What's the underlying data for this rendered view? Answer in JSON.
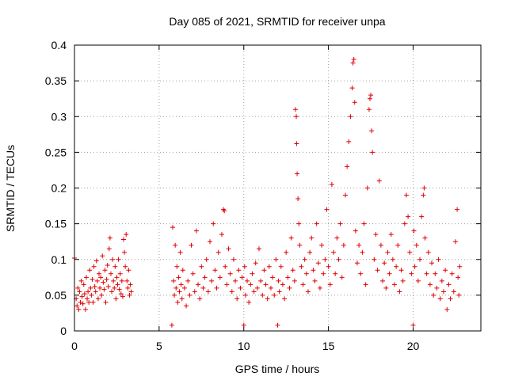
{
  "chart_data": {
    "type": "scatter",
    "title": "Day 085 of 2021, SRMTID for receiver unpa",
    "xlabel": "GPS time / hours",
    "ylabel": "SRMTID / TECUs",
    "xlim": [
      0,
      24
    ],
    "ylim": [
      0,
      0.4
    ],
    "xticks": [
      0,
      5,
      10,
      15,
      20
    ],
    "xtick_labels": [
      "0",
      "5",
      "10",
      "15",
      "20"
    ],
    "yticks": [
      0,
      0.05,
      0.1,
      0.15,
      0.2,
      0.25,
      0.3,
      0.35,
      0.4
    ],
    "ytick_labels": [
      "0",
      "0.05",
      "0.1",
      "0.15",
      "0.2",
      "0.25",
      "0.3",
      "0.35",
      "0.4"
    ],
    "grid": true,
    "marker": "+",
    "color": "#e00000",
    "series": [
      {
        "name": "SRMTID",
        "points": [
          [
            0.0,
            0.102
          ],
          [
            0.1,
            0.045
          ],
          [
            0.15,
            0.035
          ],
          [
            0.2,
            0.06
          ],
          [
            0.25,
            0.03
          ],
          [
            0.3,
            0.055
          ],
          [
            0.35,
            0.04
          ],
          [
            0.4,
            0.07
          ],
          [
            0.45,
            0.048
          ],
          [
            0.5,
            0.038
          ],
          [
            0.55,
            0.065
          ],
          [
            0.6,
            0.052
          ],
          [
            0.65,
            0.03
          ],
          [
            0.7,
            0.075
          ],
          [
            0.75,
            0.045
          ],
          [
            0.8,
            0.055
          ],
          [
            0.85,
            0.04
          ],
          [
            0.9,
            0.085
          ],
          [
            0.95,
            0.06
          ],
          [
            1.0,
            0.05
          ],
          [
            1.05,
            0.072
          ],
          [
            1.1,
            0.04
          ],
          [
            1.15,
            0.09
          ],
          [
            1.2,
            0.062
          ],
          [
            1.25,
            0.055
          ],
          [
            1.3,
            0.098
          ],
          [
            1.35,
            0.07
          ],
          [
            1.4,
            0.045
          ],
          [
            1.45,
            0.08
          ],
          [
            1.5,
            0.06
          ],
          [
            1.55,
            0.075
          ],
          [
            1.6,
            0.05
          ],
          [
            1.65,
            0.105
          ],
          [
            1.7,
            0.068
          ],
          [
            1.75,
            0.058
          ],
          [
            1.8,
            0.085
          ],
          [
            1.85,
            0.04
          ],
          [
            1.9,
            0.072
          ],
          [
            1.95,
            0.092
          ],
          [
            2.0,
            0.062
          ],
          [
            2.05,
            0.115
          ],
          [
            2.1,
            0.13
          ],
          [
            2.15,
            0.08
          ],
          [
            2.2,
            0.055
          ],
          [
            2.25,
            0.1
          ],
          [
            2.3,
            0.07
          ],
          [
            2.35,
            0.06
          ],
          [
            2.4,
            0.09
          ],
          [
            2.45,
            0.045
          ],
          [
            2.5,
            0.075
          ],
          [
            2.55,
            0.065
          ],
          [
            2.6,
            0.1
          ],
          [
            2.65,
            0.058
          ],
          [
            2.7,
            0.08
          ],
          [
            2.75,
            0.052
          ],
          [
            2.8,
            0.07
          ],
          [
            2.85,
            0.048
          ],
          [
            2.9,
            0.128
          ],
          [
            2.95,
            0.11
          ],
          [
            3.0,
            0.09
          ],
          [
            3.05,
            0.135
          ],
          [
            3.1,
            0.07
          ],
          [
            3.15,
            0.06
          ],
          [
            3.2,
            0.085
          ],
          [
            3.25,
            0.05
          ],
          [
            3.3,
            0.065
          ],
          [
            3.35,
            0.055
          ],
          [
            5.75,
            0.008
          ],
          [
            5.8,
            0.145
          ],
          [
            5.85,
            0.07
          ],
          [
            5.9,
            0.05
          ],
          [
            5.95,
            0.12
          ],
          [
            6.0,
            0.06
          ],
          [
            6.05,
            0.09
          ],
          [
            6.1,
            0.04
          ],
          [
            6.15,
            0.075
          ],
          [
            6.2,
            0.055
          ],
          [
            6.25,
            0.11
          ],
          [
            6.3,
            0.065
          ],
          [
            6.35,
            0.045
          ],
          [
            6.4,
            0.085
          ],
          [
            6.5,
            0.06
          ],
          [
            6.6,
            0.035
          ],
          [
            6.7,
            0.07
          ],
          [
            6.8,
            0.05
          ],
          [
            6.9,
            0.12
          ],
          [
            7.0,
            0.08
          ],
          [
            7.1,
            0.055
          ],
          [
            7.2,
            0.14
          ],
          [
            7.3,
            0.065
          ],
          [
            7.4,
            0.045
          ],
          [
            7.5,
            0.09
          ],
          [
            7.6,
            0.06
          ],
          [
            7.7,
            0.075
          ],
          [
            7.8,
            0.1
          ],
          [
            7.9,
            0.055
          ],
          [
            8.0,
            0.125
          ],
          [
            8.1,
            0.07
          ],
          [
            8.2,
            0.15
          ],
          [
            8.3,
            0.085
          ],
          [
            8.4,
            0.06
          ],
          [
            8.5,
            0.11
          ],
          [
            8.6,
            0.075
          ],
          [
            8.7,
            0.135
          ],
          [
            8.8,
            0.17
          ],
          [
            8.85,
            0.168
          ],
          [
            8.9,
            0.09
          ],
          [
            9.0,
            0.065
          ],
          [
            9.1,
            0.115
          ],
          [
            9.2,
            0.08
          ],
          [
            9.3,
            0.055
          ],
          [
            9.4,
            0.1
          ],
          [
            9.5,
            0.07
          ],
          [
            9.6,
            0.045
          ],
          [
            9.7,
            0.085
          ],
          [
            9.8,
            0.06
          ],
          [
            9.9,
            0.075
          ],
          [
            10.0,
            0.008
          ],
          [
            10.05,
            0.09
          ],
          [
            10.1,
            0.05
          ],
          [
            10.2,
            0.07
          ],
          [
            10.3,
            0.04
          ],
          [
            10.4,
            0.065
          ],
          [
            10.5,
            0.08
          ],
          [
            10.6,
            0.055
          ],
          [
            10.7,
            0.095
          ],
          [
            10.8,
            0.06
          ],
          [
            10.9,
            0.115
          ],
          [
            11.0,
            0.07
          ],
          [
            11.1,
            0.05
          ],
          [
            11.2,
            0.085
          ],
          [
            11.3,
            0.065
          ],
          [
            11.4,
            0.045
          ],
          [
            11.5,
            0.09
          ],
          [
            11.6,
            0.06
          ],
          [
            11.7,
            0.075
          ],
          [
            11.8,
            0.05
          ],
          [
            11.9,
            0.1
          ],
          [
            12.0,
            0.008
          ],
          [
            12.05,
            0.07
          ],
          [
            12.1,
            0.055
          ],
          [
            12.2,
            0.09
          ],
          [
            12.3,
            0.065
          ],
          [
            12.4,
            0.045
          ],
          [
            12.5,
            0.11
          ],
          [
            12.6,
            0.075
          ],
          [
            12.7,
            0.06
          ],
          [
            12.8,
            0.13
          ],
          [
            12.9,
            0.085
          ],
          [
            13.0,
            0.07
          ],
          [
            13.05,
            0.31
          ],
          [
            13.1,
            0.3
          ],
          [
            13.12,
            0.262
          ],
          [
            13.15,
            0.22
          ],
          [
            13.2,
            0.185
          ],
          [
            13.25,
            0.15
          ],
          [
            13.3,
            0.12
          ],
          [
            13.4,
            0.09
          ],
          [
            13.5,
            0.065
          ],
          [
            13.6,
            0.1
          ],
          [
            13.7,
            0.08
          ],
          [
            13.8,
            0.055
          ],
          [
            13.9,
            0.11
          ],
          [
            14.0,
            0.13
          ],
          [
            14.1,
            0.085
          ],
          [
            14.2,
            0.07
          ],
          [
            14.3,
            0.15
          ],
          [
            14.4,
            0.095
          ],
          [
            14.5,
            0.06
          ],
          [
            14.6,
            0.12
          ],
          [
            14.7,
            0.08
          ],
          [
            14.8,
            0.1
          ],
          [
            14.9,
            0.17
          ],
          [
            15.0,
            0.09
          ],
          [
            15.1,
            0.065
          ],
          [
            15.2,
            0.205
          ],
          [
            15.3,
            0.11
          ],
          [
            15.4,
            0.08
          ],
          [
            15.5,
            0.13
          ],
          [
            15.6,
            0.1
          ],
          [
            15.7,
            0.15
          ],
          [
            15.8,
            0.075
          ],
          [
            15.9,
            0.12
          ],
          [
            16.0,
            0.19
          ],
          [
            16.1,
            0.23
          ],
          [
            16.2,
            0.265
          ],
          [
            16.3,
            0.3
          ],
          [
            16.4,
            0.34
          ],
          [
            16.45,
            0.375
          ],
          [
            16.5,
            0.38
          ],
          [
            16.55,
            0.32
          ],
          [
            16.6,
            0.14
          ],
          [
            16.7,
            0.095
          ],
          [
            16.8,
            0.12
          ],
          [
            16.9,
            0.08
          ],
          [
            17.0,
            0.11
          ],
          [
            17.1,
            0.15
          ],
          [
            17.2,
            0.065
          ],
          [
            17.3,
            0.2
          ],
          [
            17.4,
            0.31
          ],
          [
            17.45,
            0.325
          ],
          [
            17.5,
            0.33
          ],
          [
            17.55,
            0.28
          ],
          [
            17.6,
            0.25
          ],
          [
            17.7,
            0.1
          ],
          [
            17.8,
            0.135
          ],
          [
            17.9,
            0.085
          ],
          [
            18.0,
            0.21
          ],
          [
            18.1,
            0.12
          ],
          [
            18.2,
            0.07
          ],
          [
            18.3,
            0.095
          ],
          [
            18.4,
            0.06
          ],
          [
            18.5,
            0.11
          ],
          [
            18.6,
            0.08
          ],
          [
            18.7,
            0.135
          ],
          [
            18.8,
            0.1
          ],
          [
            18.9,
            0.065
          ],
          [
            19.0,
            0.09
          ],
          [
            19.1,
            0.12
          ],
          [
            19.2,
            0.055
          ],
          [
            19.3,
            0.085
          ],
          [
            19.4,
            0.07
          ],
          [
            19.5,
            0.15
          ],
          [
            19.6,
            0.19
          ],
          [
            19.7,
            0.16
          ],
          [
            19.8,
            0.11
          ],
          [
            19.9,
            0.08
          ],
          [
            20.0,
            0.008
          ],
          [
            20.05,
            0.14
          ],
          [
            20.1,
            0.09
          ],
          [
            20.2,
            0.12
          ],
          [
            20.3,
            0.07
          ],
          [
            20.4,
            0.1
          ],
          [
            20.5,
            0.16
          ],
          [
            20.6,
            0.19
          ],
          [
            20.65,
            0.2
          ],
          [
            20.7,
            0.13
          ],
          [
            20.8,
            0.08
          ],
          [
            20.9,
            0.11
          ],
          [
            21.0,
            0.065
          ],
          [
            21.1,
            0.095
          ],
          [
            21.2,
            0.05
          ],
          [
            21.3,
            0.08
          ],
          [
            21.4,
            0.06
          ],
          [
            21.5,
            0.1
          ],
          [
            21.6,
            0.045
          ],
          [
            21.7,
            0.07
          ],
          [
            21.8,
            0.055
          ],
          [
            21.9,
            0.085
          ],
          [
            22.0,
            0.03
          ],
          [
            22.1,
            0.065
          ],
          [
            22.2,
            0.045
          ],
          [
            22.3,
            0.08
          ],
          [
            22.4,
            0.055
          ],
          [
            22.5,
            0.125
          ],
          [
            22.6,
            0.17
          ],
          [
            22.65,
            0.075
          ],
          [
            22.7,
            0.05
          ],
          [
            22.75,
            0.09
          ]
        ]
      }
    ]
  }
}
